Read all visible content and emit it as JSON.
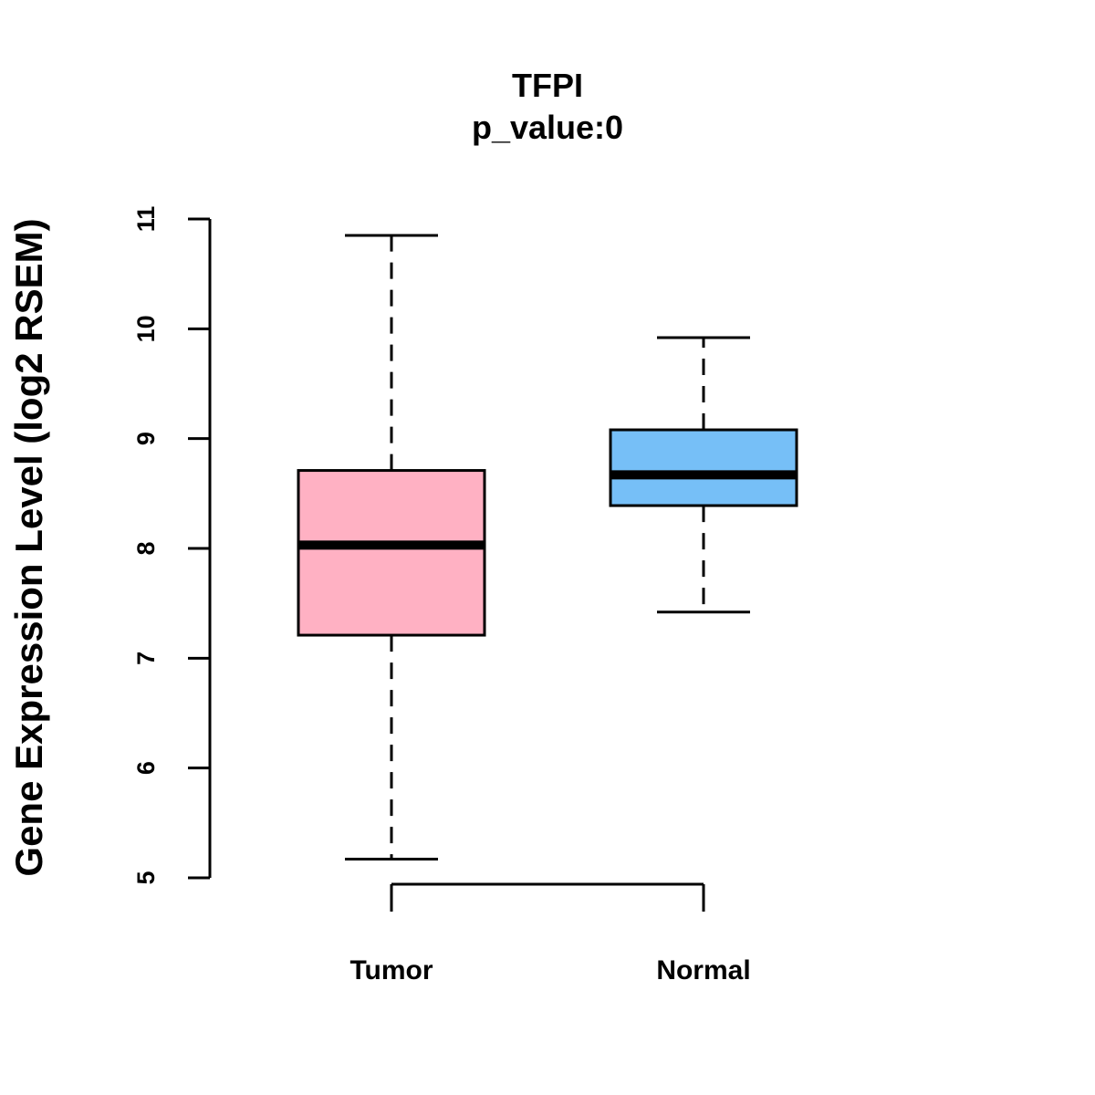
{
  "chart_data": {
    "type": "box",
    "title": "TFPI",
    "subtitle": "p_value:0",
    "xlabel": "",
    "ylabel": "Gene Expression Level (log2 RSEM)",
    "ylim": [
      5,
      11
    ],
    "yticks": [
      5,
      6,
      7,
      8,
      9,
      10,
      11
    ],
    "yticks_text": [
      "5",
      "6",
      "7",
      "8",
      "9",
      "10",
      "11"
    ],
    "grid": false,
    "categories": [
      "Tumor",
      "Normal"
    ],
    "series": [
      {
        "name": "Tumor",
        "whisker_low": 5.17,
        "q1": 7.21,
        "median": 8.03,
        "q3": 8.71,
        "whisker_high": 10.85,
        "color": "#FFB1C3"
      },
      {
        "name": "Normal",
        "whisker_low": 7.42,
        "q1": 8.39,
        "median": 8.67,
        "q3": 9.08,
        "whisker_high": 9.92,
        "color": "#76BFF7"
      }
    ]
  }
}
